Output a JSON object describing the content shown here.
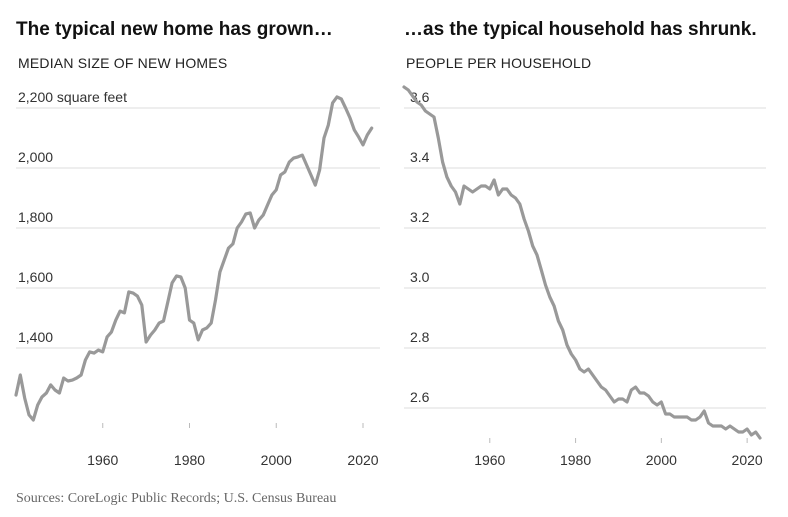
{
  "chart_data": [
    {
      "type": "line",
      "title": "The typical new home has grown…",
      "subtitle": "MEDIAN SIZE OF NEW HOMES",
      "x": [
        1940,
        1941,
        1942,
        1943,
        1944,
        1945,
        1946,
        1947,
        1948,
        1949,
        1950,
        1951,
        1952,
        1953,
        1954,
        1955,
        1956,
        1957,
        1958,
        1959,
        1960,
        1961,
        1962,
        1963,
        1964,
        1965,
        1966,
        1967,
        1968,
        1969,
        1970,
        1971,
        1972,
        1973,
        1974,
        1975,
        1976,
        1977,
        1978,
        1979,
        1980,
        1981,
        1982,
        1983,
        1984,
        1985,
        1986,
        1987,
        1988,
        1989,
        1990,
        1991,
        1992,
        1993,
        1994,
        1995,
        1996,
        1997,
        1998,
        1999,
        2000,
        2001,
        2002,
        2003,
        2004,
        2005,
        2006,
        2007,
        2008,
        2009,
        2010,
        2011,
        2012,
        2013,
        2014,
        2015,
        2016,
        2017,
        2018,
        2019,
        2020,
        2021,
        2022
      ],
      "series": [
        {
          "name": "Median size of new homes",
          "color": "#999999",
          "values": [
            1243,
            1310,
            1233,
            1177,
            1160,
            1210,
            1237,
            1250,
            1277,
            1260,
            1250,
            1300,
            1290,
            1293,
            1300,
            1310,
            1360,
            1387,
            1383,
            1393,
            1387,
            1437,
            1453,
            1493,
            1523,
            1517,
            1587,
            1583,
            1573,
            1543,
            1420,
            1443,
            1460,
            1483,
            1490,
            1553,
            1617,
            1640,
            1637,
            1600,
            1493,
            1483,
            1427,
            1460,
            1467,
            1483,
            1560,
            1653,
            1693,
            1733,
            1747,
            1800,
            1820,
            1847,
            1850,
            1800,
            1827,
            1843,
            1877,
            1910,
            1927,
            1977,
            1987,
            2020,
            2033,
            2037,
            2043,
            2010,
            1977,
            1943,
            1993,
            2100,
            2143,
            2217,
            2237,
            2230,
            2200,
            2167,
            2127,
            2103,
            2077,
            2110,
            2133
          ]
        }
      ],
      "xlim": [
        1940,
        2023
      ],
      "xticks": [
        1960,
        1980,
        2000,
        2020
      ],
      "ylim": [
        1130,
        2270
      ],
      "yticks": [
        {
          "value": 1400,
          "label": "1,400"
        },
        {
          "value": 1600,
          "label": "1,600"
        },
        {
          "value": 1800,
          "label": "1,800"
        },
        {
          "value": 2000,
          "label": "2,000"
        },
        {
          "value": 2200,
          "label": "2,200 square feet"
        }
      ],
      "grid": true
    },
    {
      "type": "line",
      "title": "…as the typical household has shrunk.",
      "subtitle": "PEOPLE PER HOUSEHOLD",
      "x": [
        1940,
        1941,
        1942,
        1943,
        1944,
        1945,
        1946,
        1947,
        1948,
        1949,
        1950,
        1951,
        1952,
        1953,
        1954,
        1955,
        1956,
        1957,
        1958,
        1959,
        1960,
        1961,
        1962,
        1963,
        1964,
        1965,
        1966,
        1967,
        1968,
        1969,
        1970,
        1971,
        1972,
        1973,
        1974,
        1975,
        1976,
        1977,
        1978,
        1979,
        1980,
        1981,
        1982,
        1983,
        1984,
        1985,
        1986,
        1987,
        1988,
        1989,
        1990,
        1991,
        1992,
        1993,
        1994,
        1995,
        1996,
        1997,
        1998,
        1999,
        2000,
        2001,
        2002,
        2003,
        2004,
        2005,
        2006,
        2007,
        2008,
        2009,
        2010,
        2011,
        2012,
        2013,
        2014,
        2015,
        2016,
        2017,
        2018,
        2019,
        2020,
        2021,
        2022,
        2023
      ],
      "series": [
        {
          "name": "People per household",
          "color": "#999999",
          "values": [
            3.67,
            3.66,
            3.64,
            3.62,
            3.61,
            3.59,
            3.58,
            3.57,
            3.5,
            3.42,
            3.37,
            3.34,
            3.32,
            3.28,
            3.34,
            3.33,
            3.32,
            3.33,
            3.34,
            3.34,
            3.33,
            3.36,
            3.31,
            3.33,
            3.33,
            3.31,
            3.3,
            3.28,
            3.23,
            3.19,
            3.14,
            3.11,
            3.06,
            3.01,
            2.97,
            2.94,
            2.89,
            2.86,
            2.81,
            2.78,
            2.76,
            2.73,
            2.72,
            2.73,
            2.71,
            2.69,
            2.67,
            2.66,
            2.64,
            2.62,
            2.63,
            2.63,
            2.62,
            2.66,
            2.67,
            2.65,
            2.65,
            2.64,
            2.62,
            2.61,
            2.62,
            2.58,
            2.58,
            2.57,
            2.57,
            2.57,
            2.57,
            2.56,
            2.56,
            2.57,
            2.59,
            2.55,
            2.54,
            2.54,
            2.54,
            2.53,
            2.54,
            2.53,
            2.52,
            2.52,
            2.53,
            2.51,
            2.52,
            2.5
          ]
        }
      ],
      "xlim": [
        1940,
        2023
      ],
      "xticks": [
        1960,
        1980,
        2000,
        2020
      ],
      "ylim": [
        2.48,
        3.72
      ],
      "yticks": [
        {
          "value": 2.6,
          "label": "2.6"
        },
        {
          "value": 2.8,
          "label": "2.8"
        },
        {
          "value": 3.0,
          "label": "3.0"
        },
        {
          "value": 3.2,
          "label": "3.2"
        },
        {
          "value": 3.4,
          "label": "3.4"
        },
        {
          "value": 3.6,
          "label": "3.6"
        }
      ],
      "grid": true
    }
  ],
  "source": "Sources: CoreLogic Public Records; U.S. Census Bureau"
}
